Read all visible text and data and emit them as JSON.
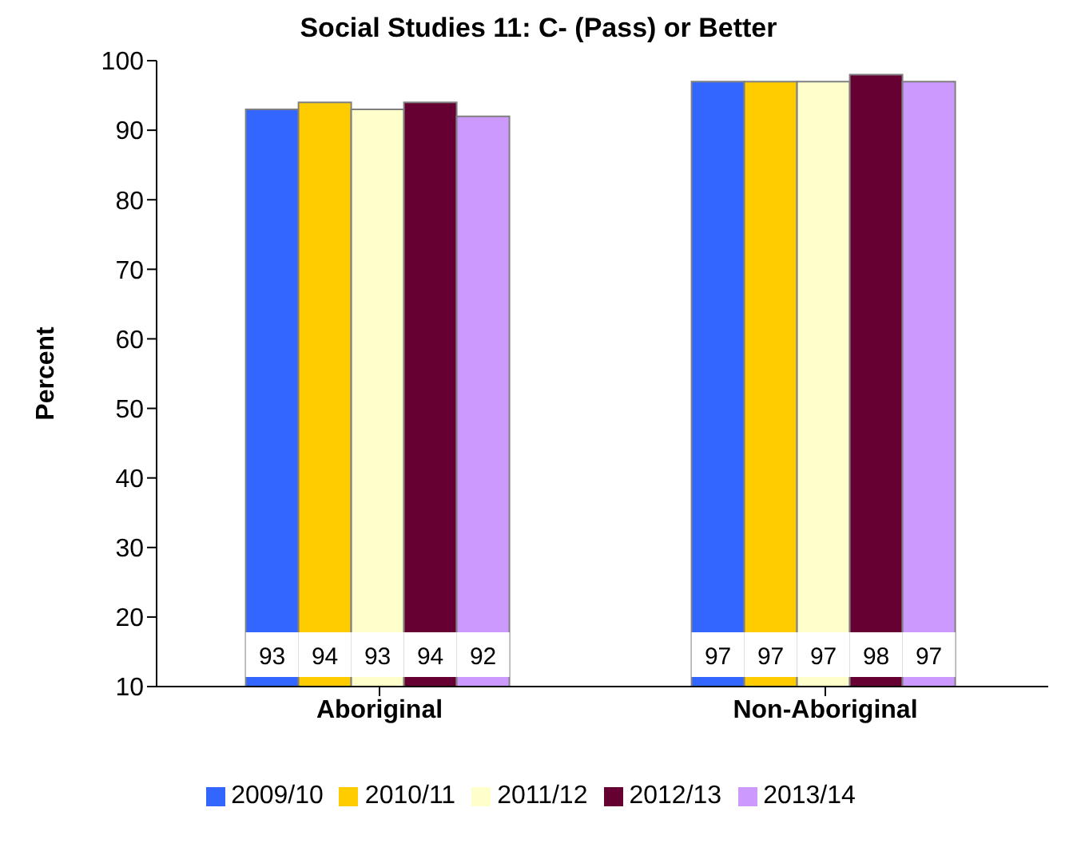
{
  "chart_data": {
    "type": "bar",
    "title": "Social Studies 11: C- (Pass) or Better",
    "ylabel": "Percent",
    "categories": [
      "Aboriginal",
      "Non-Aboriginal"
    ],
    "series": [
      {
        "name": "2009/10",
        "color": "#3366ff",
        "values": [
          93,
          97
        ]
      },
      {
        "name": "2010/11",
        "color": "#ffcc00",
        "values": [
          94,
          97
        ]
      },
      {
        "name": "2011/12",
        "color": "#ffffcc",
        "values": [
          93,
          97
        ]
      },
      {
        "name": "2012/13",
        "color": "#660033",
        "values": [
          94,
          98
        ]
      },
      {
        "name": "2013/14",
        "color": "#cc99ff",
        "values": [
          92,
          97
        ]
      }
    ],
    "ylim": [
      10,
      100
    ],
    "yticks": [
      10,
      20,
      30,
      40,
      50,
      60,
      70,
      80,
      90,
      100
    ],
    "grid": false,
    "legend": "bottom",
    "data_labels": true
  }
}
